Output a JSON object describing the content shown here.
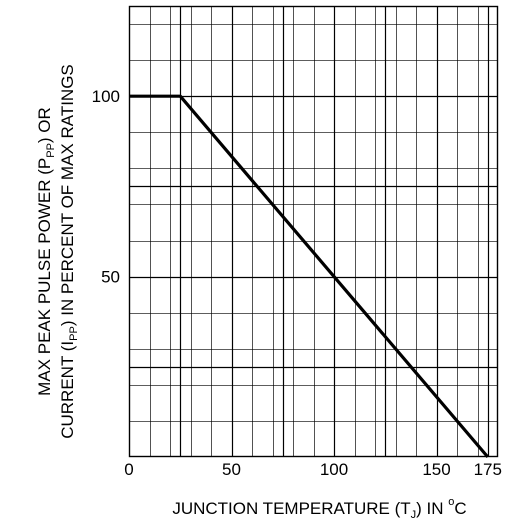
{
  "chart_data": {
    "type": "line",
    "xlabel": {
      "text_before": "JUNCTION TEMPERATURE (T",
      "subscript": "J",
      "text_after": ") IN ",
      "superscript": "o",
      "unit": "C"
    },
    "ylabel": {
      "line1": {
        "text_before": "MAX PEAK PULSE POWER (P",
        "subscript": "PP",
        "text_after": ") OR"
      },
      "line2": {
        "text_before": "CURRENT (I",
        "subscript": "PP",
        "text_after": ") IN PERCENT OF MAX RATINGS"
      }
    },
    "xlim": [
      0,
      180
    ],
    "ylim": [
      0,
      100
    ],
    "y_plot_max": 125,
    "x_ticks": [
      {
        "value": 0,
        "label": "0"
      },
      {
        "value": 50,
        "label": "50"
      },
      {
        "value": 100,
        "label": "100"
      },
      {
        "value": 150,
        "label": "150"
      },
      {
        "value": 175,
        "label": "175"
      }
    ],
    "y_ticks": [
      {
        "value": 50,
        "label": "50"
      },
      {
        "value": 100,
        "label": "100"
      }
    ],
    "grid": true,
    "grid_minor_step_x": 10,
    "grid_minor_step_y": 10,
    "grid_major_step_x": 50,
    "grid_major_step_y": 50,
    "series": [
      {
        "x": [
          0,
          25,
          175
        ],
        "y": [
          100,
          100,
          0
        ]
      }
    ],
    "colors": {
      "line": "#000000",
      "grid": "#000000",
      "background": "#ffffff"
    }
  }
}
